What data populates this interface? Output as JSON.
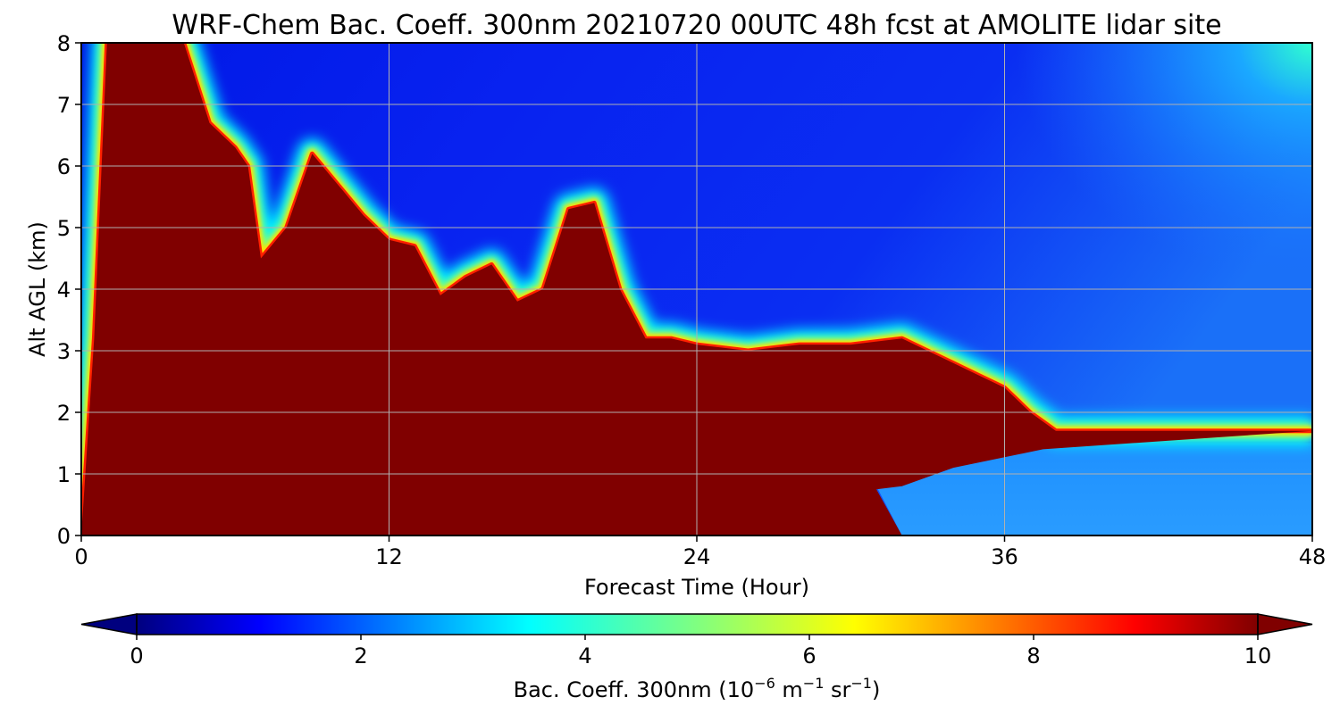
{
  "chart_data": {
    "type": "heatmap",
    "title": "WRF-Chem Bac. Coeff. 300nm  20210720 00UTC 48h fcst at AMOLITE lidar site",
    "xlabel": "Forecast Time (Hour)",
    "ylabel": "Alt AGL (km)",
    "xlim": [
      0,
      48
    ],
    "ylim": [
      0,
      8
    ],
    "xticks": [
      "0",
      "12",
      "24",
      "36",
      "48"
    ],
    "yticks": [
      "0",
      "1",
      "2",
      "3",
      "4",
      "5",
      "6",
      "7",
      "8"
    ],
    "grid": true,
    "colorbar": {
      "label_main": "Bac. Coeff. 300nm  (10",
      "label_exp1": "−6",
      "label_mid": " m",
      "label_exp2": "−1",
      "label_mid2": " sr",
      "label_exp3": "−1",
      "label_end": ")",
      "ticks": [
        "0",
        "2",
        "4",
        "6",
        "8",
        "10"
      ],
      "range": [
        0,
        10
      ],
      "extend": "both",
      "colormap": "jet"
    },
    "boundary_top_km": {
      "hours": [
        0,
        0.5,
        1,
        2,
        4,
        5,
        6,
        6.5,
        7,
        8,
        9,
        10,
        11,
        12,
        13,
        14,
        15,
        16,
        17,
        18,
        19,
        20,
        21,
        22,
        23,
        24,
        26,
        28,
        30,
        32,
        33,
        34,
        35,
        36,
        37,
        38,
        48
      ],
      "values": [
        0,
        3.2,
        8,
        8,
        8,
        6.7,
        6.3,
        6.0,
        4.5,
        5.0,
        6.2,
        5.7,
        5.2,
        4.8,
        4.7,
        3.9,
        4.2,
        4.4,
        3.8,
        4.0,
        5.3,
        5.4,
        4.0,
        3.2,
        3.2,
        3.1,
        3.0,
        3.1,
        3.1,
        3.2,
        3.0,
        2.8,
        2.6,
        2.4,
        2.0,
        1.7,
        1.7
      ]
    },
    "lower_right_top_km": {
      "hours": [
        31,
        32,
        34,
        36,
        38,
        48
      ],
      "values": [
        0.8,
        0.8,
        1.2,
        1.3,
        1.5,
        1.5
      ]
    }
  }
}
